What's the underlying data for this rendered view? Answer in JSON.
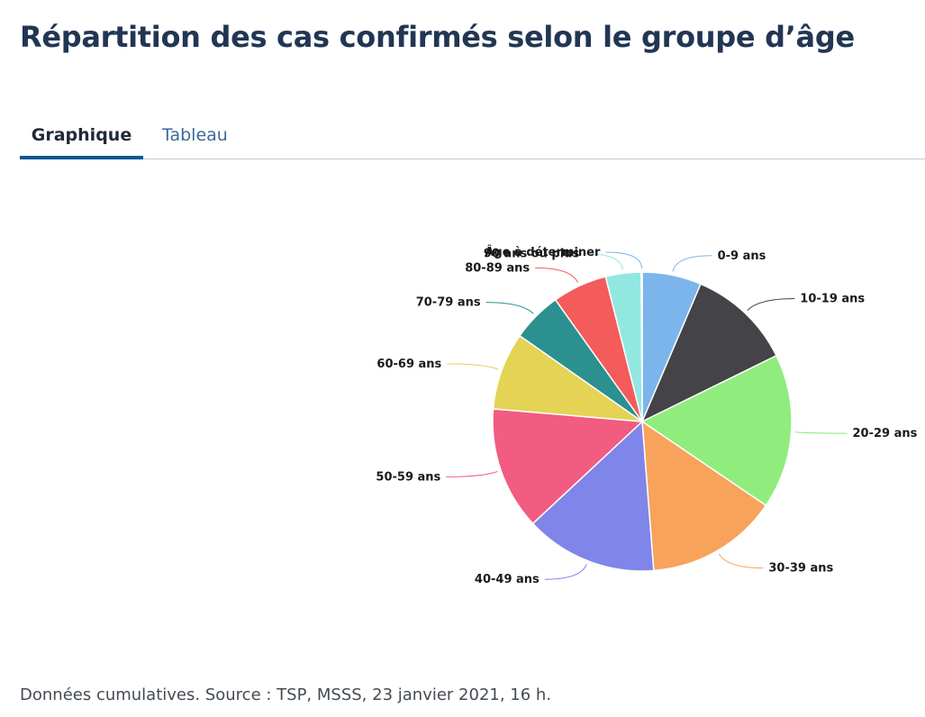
{
  "page": {
    "title": "Répartition des cas confirmés selon le groupe d’âge",
    "footnote": "Données cumulatives. Source : TSP, MSSS, 23 janvier 2021, 16 h."
  },
  "tabs": [
    {
      "label": "Graphique",
      "active": true
    },
    {
      "label": "Tableau",
      "active": false
    }
  ],
  "chart_data": {
    "type": "pie",
    "start_angle": "12 o'clock",
    "direction": "clockwise",
    "slices": [
      {
        "label": "0-9 ans",
        "value": 6.5,
        "color": "#7cb5ec"
      },
      {
        "label": "10-19 ans",
        "value": 11.5,
        "color": "#434348"
      },
      {
        "label": "20-29 ans",
        "value": 17.0,
        "color": "#90ed7d"
      },
      {
        "label": "30-39 ans",
        "value": 14.5,
        "color": "#f7a35c"
      },
      {
        "label": "40-49 ans",
        "value": 14.5,
        "color": "#8085e9"
      },
      {
        "label": "50-59 ans",
        "value": 13.5,
        "color": "#f15c80"
      },
      {
        "label": "60-69 ans",
        "value": 8.5,
        "color": "#e4d354"
      },
      {
        "label": "70-79 ans",
        "value": 5.5,
        "color": "#2b908f"
      },
      {
        "label": "80-89 ans",
        "value": 6.0,
        "color": "#f45b5b"
      },
      {
        "label": "90 ans ou plus",
        "value": 3.9,
        "color": "#91e8e1"
      },
      {
        "label": "Âge à déterminer",
        "value": 0.1,
        "color": "#7cb5ec"
      }
    ]
  }
}
